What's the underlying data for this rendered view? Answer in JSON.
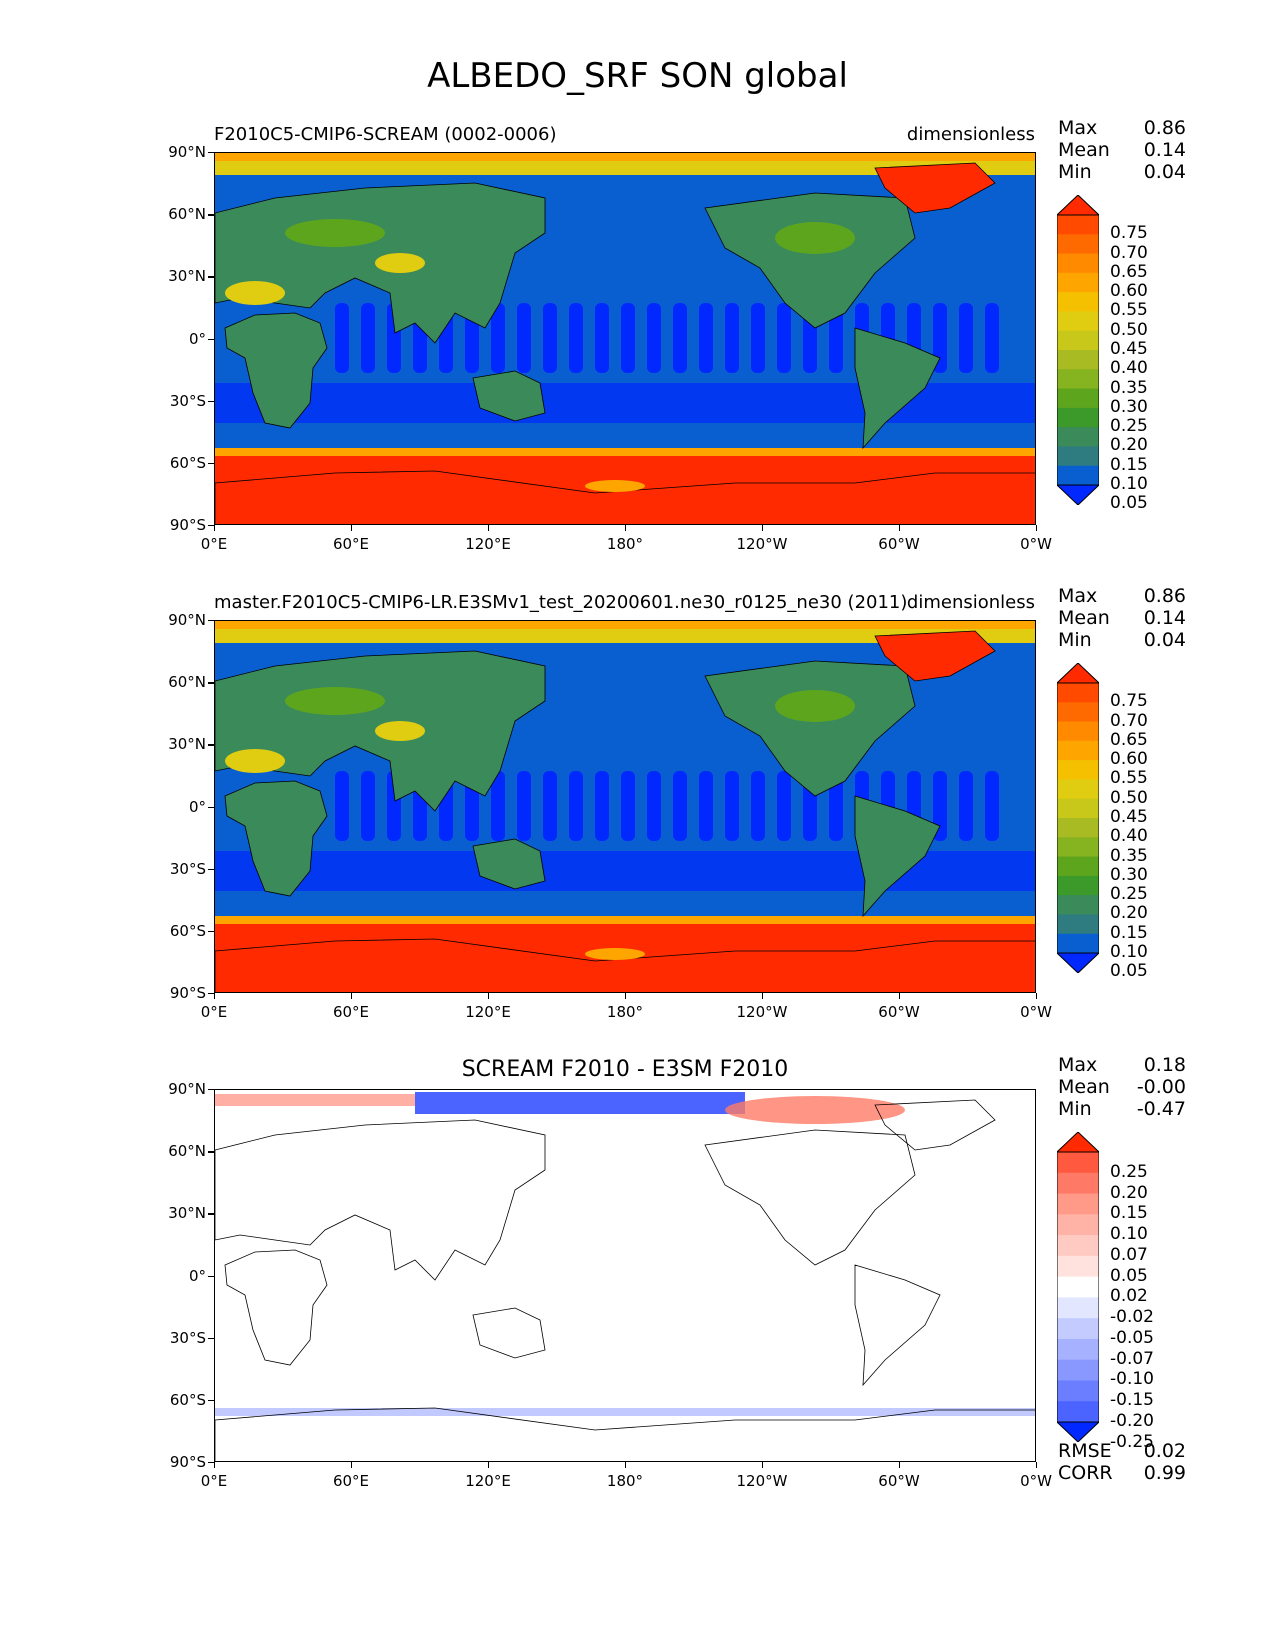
{
  "title": "ALBEDO_SRF SON global",
  "panels": [
    {
      "title": "F2010C5-CMIP6-SCREAM (0002-0006)",
      "units": "dimensionless",
      "stats": [
        {
          "label": "Max",
          "value": "0.86"
        },
        {
          "label": "Mean",
          "value": "0.14"
        },
        {
          "label": "Min",
          "value": "0.04"
        }
      ],
      "colorbar_labels": [
        "0.75",
        "0.70",
        "0.65",
        "0.60",
        "0.55",
        "0.50",
        "0.45",
        "0.40",
        "0.35",
        "0.30",
        "0.25",
        "0.20",
        "0.15",
        "0.10",
        "0.05"
      ],
      "colorbar_colors": [
        "#ff2a00",
        "#ff4a00",
        "#ff6a00",
        "#ff8a00",
        "#ffa500",
        "#f5c000",
        "#e0cc10",
        "#c8c81a",
        "#a8bb22",
        "#86b320",
        "#5ea51e",
        "#3c9a2a",
        "#3a8a5a",
        "#2e7c80",
        "#0a5fd0",
        "#0028ff"
      ]
    },
    {
      "title": "master.F2010C5-CMIP6-LR.E3SMv1_test_20200601.ne30_r0125_ne30 (2011)",
      "units": "dimensionless",
      "stats": [
        {
          "label": "Max",
          "value": "0.86"
        },
        {
          "label": "Mean",
          "value": "0.14"
        },
        {
          "label": "Min",
          "value": "0.04"
        }
      ],
      "colorbar_labels": [
        "0.75",
        "0.70",
        "0.65",
        "0.60",
        "0.55",
        "0.50",
        "0.45",
        "0.40",
        "0.35",
        "0.30",
        "0.25",
        "0.20",
        "0.15",
        "0.10",
        "0.05"
      ],
      "colorbar_colors": [
        "#ff2a00",
        "#ff4a00",
        "#ff6a00",
        "#ff8a00",
        "#ffa500",
        "#f5c000",
        "#e0cc10",
        "#c8c81a",
        "#a8bb22",
        "#86b320",
        "#5ea51e",
        "#3c9a2a",
        "#3a8a5a",
        "#2e7c80",
        "#0a5fd0",
        "#0028ff"
      ]
    },
    {
      "title": "SCREAM F2010 - E3SM F2010",
      "units": "",
      "stats": [
        {
          "label": "Max",
          "value": "0.18"
        },
        {
          "label": "Mean",
          "value": "-0.00"
        },
        {
          "label": "Min",
          "value": "-0.47"
        }
      ],
      "extra_stats": [
        {
          "label": "RMSE",
          "value": "0.02"
        },
        {
          "label": "CORR",
          "value": "0.99"
        }
      ],
      "colorbar_labels": [
        "0.25",
        "0.20",
        "0.15",
        "0.10",
        "0.07",
        "0.05",
        "0.02",
        "-0.02",
        "-0.05",
        "-0.07",
        "-0.10",
        "-0.15",
        "-0.20",
        "-0.25"
      ],
      "colorbar_colors": [
        "#ff2a00",
        "#ff5a40",
        "#ff7a66",
        "#ff9a88",
        "#ffb3a6",
        "#ffcac2",
        "#ffe2de",
        "#ffffff",
        "#e2e6ff",
        "#c4ccff",
        "#a6b2ff",
        "#8898ff",
        "#6a7eff",
        "#4c64ff",
        "#0028ff"
      ]
    }
  ],
  "y_ticks": [
    "90°N",
    "60°N",
    "30°N",
    "0°",
    "30°S",
    "60°S",
    "90°S"
  ],
  "x_ticks": [
    "0°E",
    "60°E",
    "120°E",
    "180°",
    "120°W",
    "60°W",
    "0°W"
  ],
  "map_colors": {
    "ocean": "#0a5fd0",
    "ocean_low": "#0028ff",
    "land": "#3a8a5a",
    "land_green": "#5ea51e",
    "desert": "#e0cc10",
    "ice": "#ff2a00",
    "ice_edge": "#ffa500",
    "diff_bg": "#ffffff",
    "diff_pos": "#ff7a66",
    "diff_neg": "#4c64ff"
  }
}
